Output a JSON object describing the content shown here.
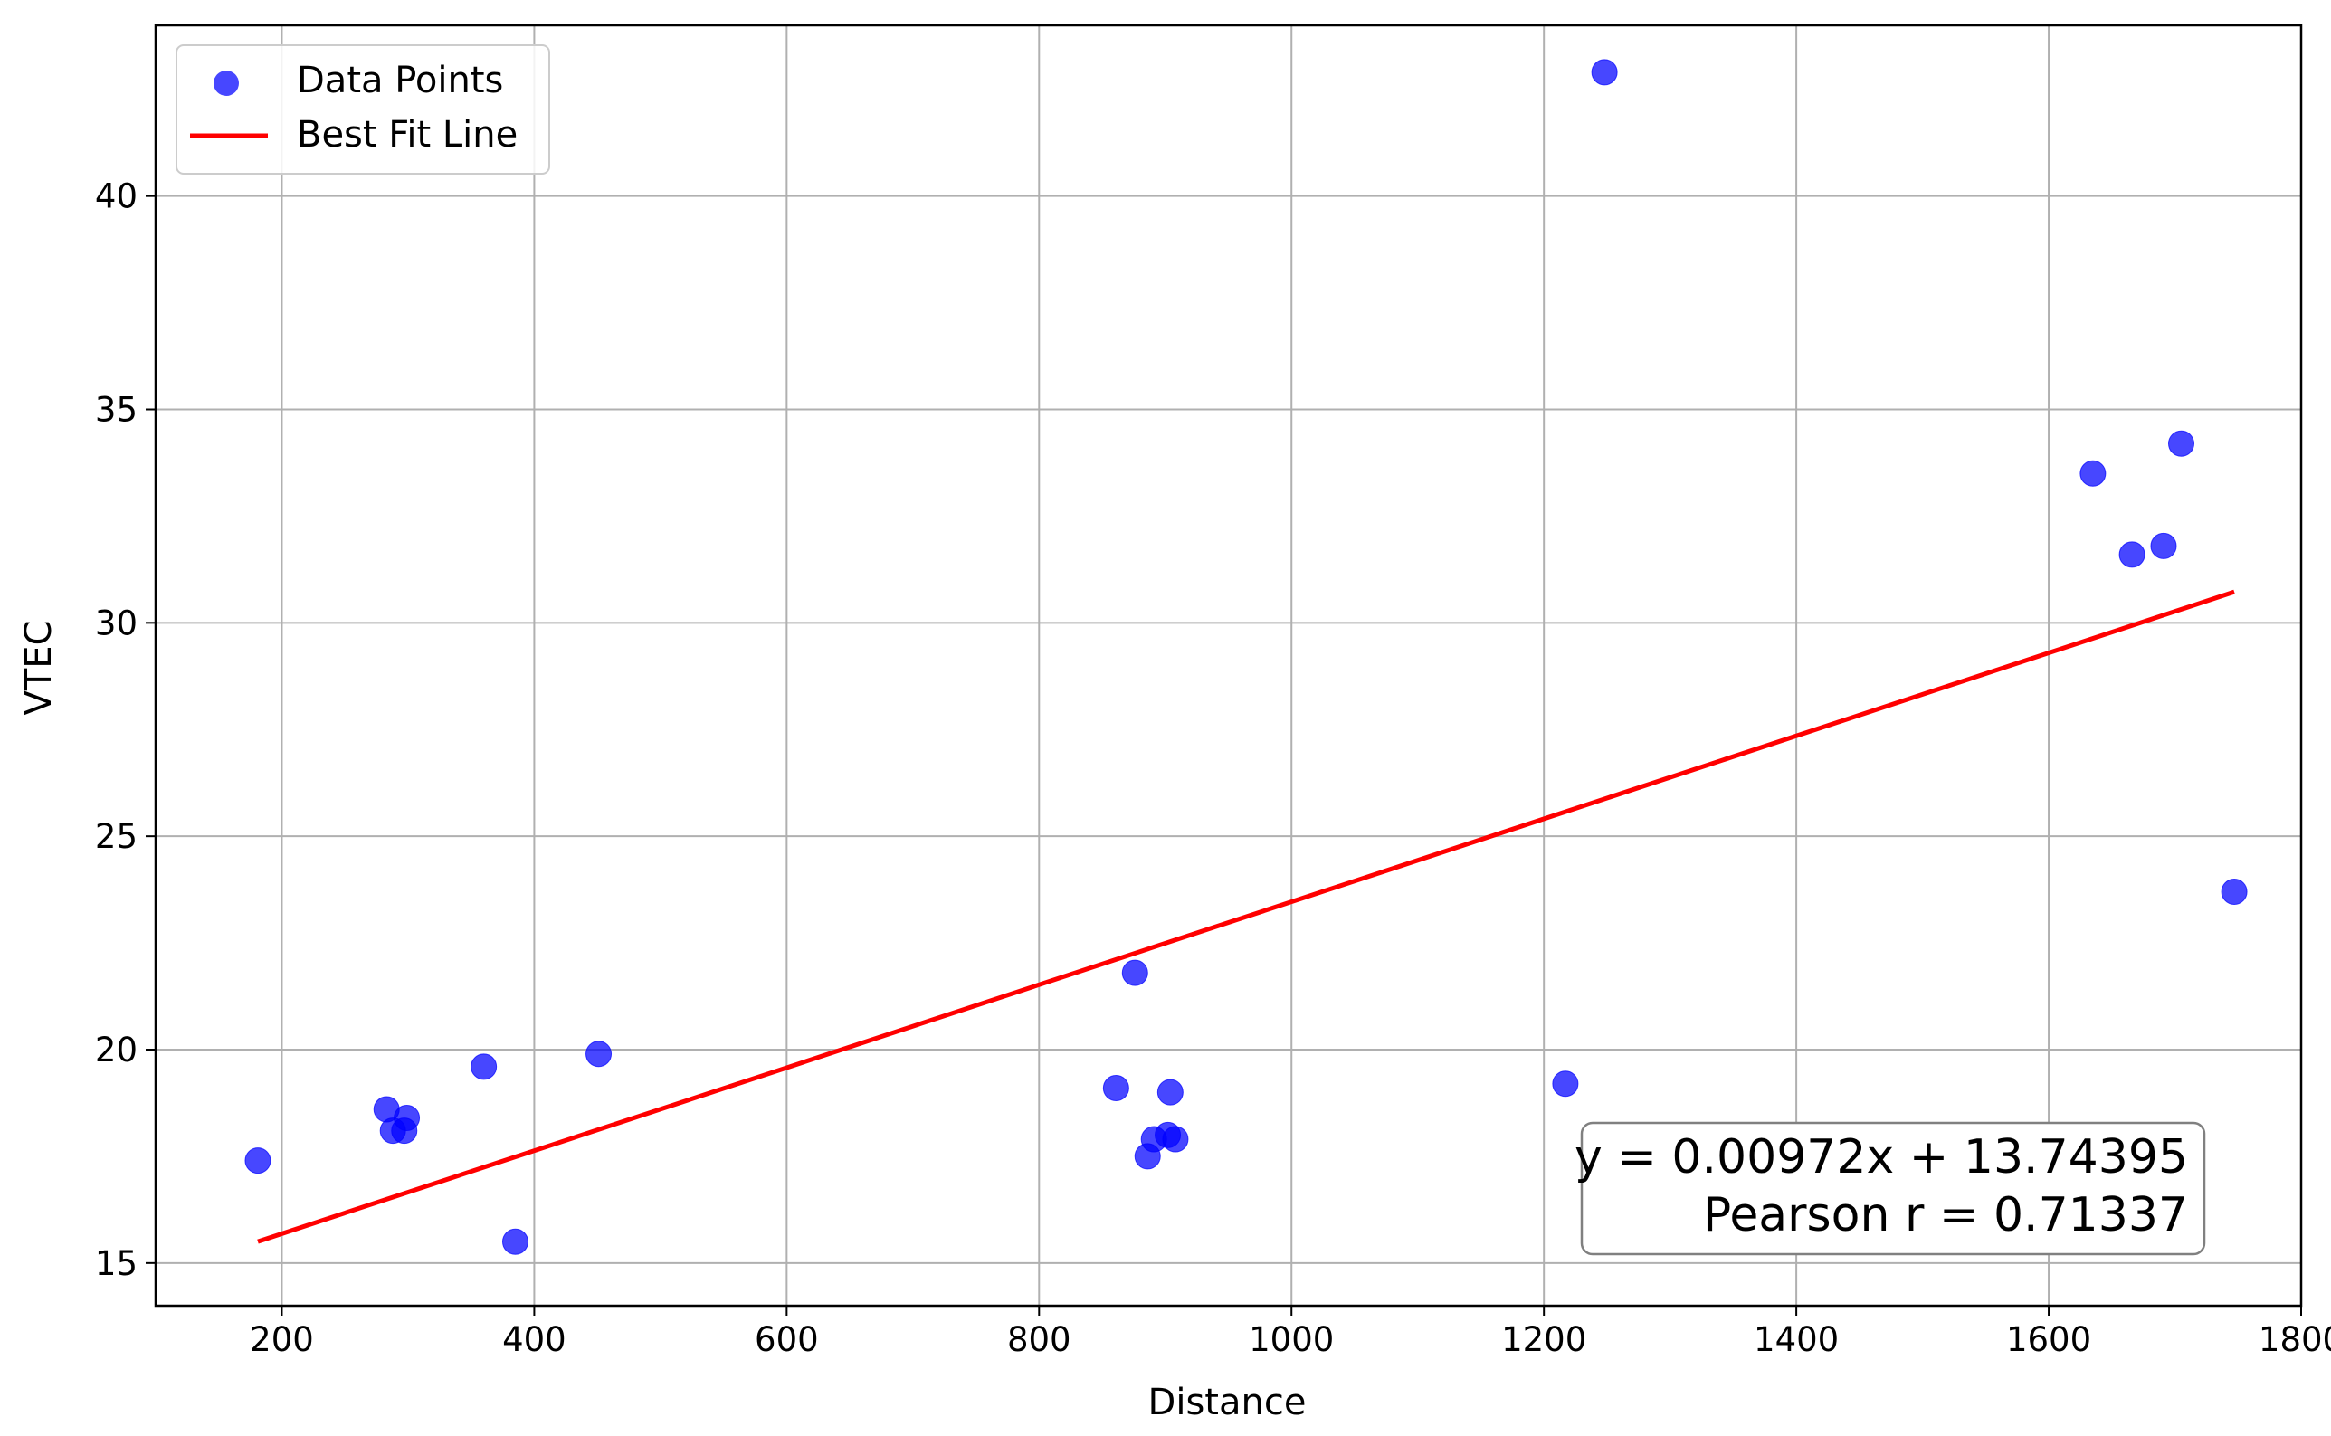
{
  "chart_data": {
    "type": "scatter",
    "title": "",
    "xlabel": "Distance",
    "ylabel": "VTEC",
    "xlim": [
      100,
      1800
    ],
    "ylim": [
      14,
      44
    ],
    "xticks": [
      200,
      400,
      600,
      800,
      1000,
      1200,
      1400,
      1600,
      1800
    ],
    "yticks": [
      15,
      20,
      25,
      30,
      35,
      40
    ],
    "grid": true,
    "legend_placement": "top-left",
    "series": [
      {
        "name": "Data Points",
        "kind": "scatter",
        "color": "#0000ff",
        "points": [
          {
            "x": 181,
            "y": 17.4
          },
          {
            "x": 283,
            "y": 18.6
          },
          {
            "x": 288,
            "y": 18.1
          },
          {
            "x": 297,
            "y": 18.1
          },
          {
            "x": 299,
            "y": 18.4
          },
          {
            "x": 360,
            "y": 19.6
          },
          {
            "x": 385,
            "y": 15.5
          },
          {
            "x": 451,
            "y": 19.9
          },
          {
            "x": 861,
            "y": 19.1
          },
          {
            "x": 876,
            "y": 21.8
          },
          {
            "x": 886,
            "y": 17.5
          },
          {
            "x": 891,
            "y": 17.9
          },
          {
            "x": 902,
            "y": 18.0
          },
          {
            "x": 904,
            "y": 19.0
          },
          {
            "x": 908,
            "y": 17.9
          },
          {
            "x": 1217,
            "y": 19.2
          },
          {
            "x": 1248,
            "y": 42.9
          },
          {
            "x": 1635,
            "y": 33.5
          },
          {
            "x": 1666,
            "y": 31.6
          },
          {
            "x": 1691,
            "y": 31.8
          },
          {
            "x": 1705,
            "y": 34.2
          },
          {
            "x": 1747,
            "y": 23.7
          }
        ]
      },
      {
        "name": "Best Fit Line",
        "kind": "line",
        "color": "#ff0000",
        "slope": 0.00972,
        "intercept": 13.74395,
        "x_range": [
          181,
          1747
        ]
      }
    ],
    "annotations": [
      "y = 0.00972x + 13.74395",
      "Pearson r = 0.71337"
    ]
  }
}
